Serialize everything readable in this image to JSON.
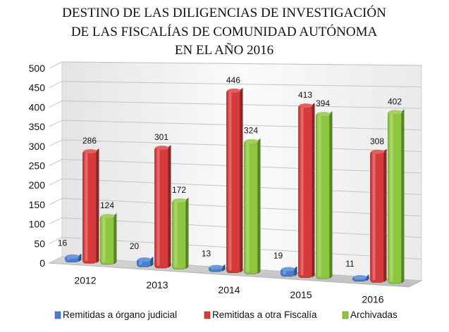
{
  "chart_data": {
    "type": "bar",
    "title_lines": [
      "DESTINO DE LAS DILIGENCIAS DE INVESTIGACIÓN",
      "DE LAS FISCALÍAS DE COMUNIDAD AUTÓNOMA",
      "EN EL AÑO 2016"
    ],
    "categories": [
      "2012",
      "2013",
      "2014",
      "2015",
      "2016"
    ],
    "series": [
      {
        "name": "Remitidas a órgano judicial",
        "values": [
          16,
          20,
          13,
          19,
          11
        ],
        "color": "#4a7fd0"
      },
      {
        "name": "Remitidas a otra Fiscalía",
        "values": [
          286,
          301,
          446,
          413,
          308
        ],
        "color": "#d63a3a"
      },
      {
        "name": "Archivadas",
        "values": [
          124,
          172,
          324,
          394,
          402
        ],
        "color": "#8dc63f"
      }
    ],
    "ylim": [
      0,
      500
    ],
    "yticks": [
      "0",
      "50",
      "100",
      "150",
      "200",
      "250",
      "300",
      "350",
      "400",
      "450",
      "500"
    ],
    "grid": true,
    "legend_position": "bottom"
  }
}
